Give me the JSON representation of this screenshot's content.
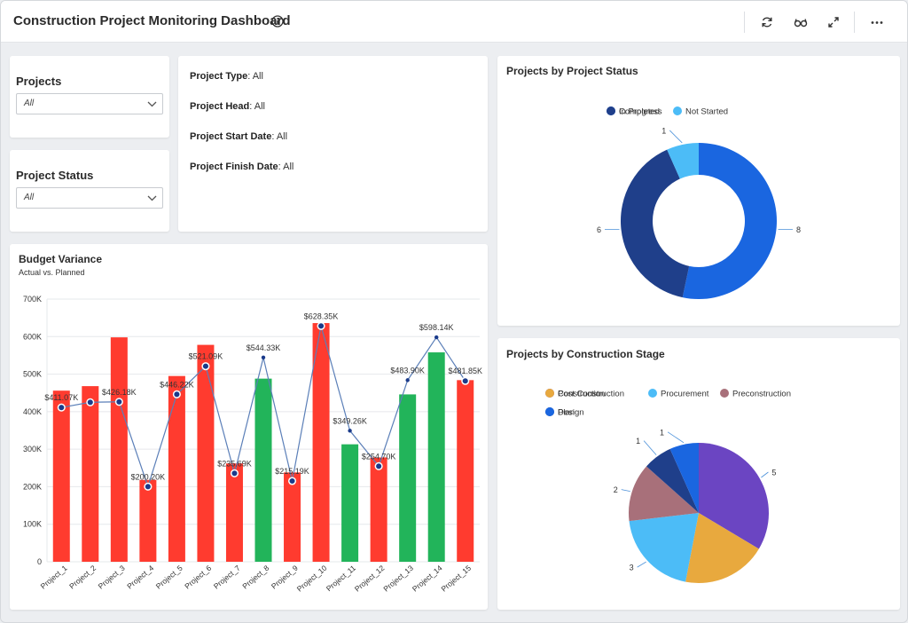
{
  "header": {
    "title": "Construction Project Monitoring Dashboard"
  },
  "filters": {
    "projects_label": "Projects",
    "projects_value": "All",
    "status_label": "Project Status",
    "status_value": "All"
  },
  "info": [
    {
      "key": "Project Type",
      "value": ": All"
    },
    {
      "key": "Project Head",
      "value": ": All"
    },
    {
      "key": "Project Start Date",
      "value": ": All"
    },
    {
      "key": "Project Finish Date",
      "value": ": All"
    }
  ],
  "colors": {
    "bar_red": "#ff3b2f",
    "bar_green": "#22b45a",
    "line": "#5b7fb8",
    "point": "#1a3a8a",
    "in_progress": "#1a66e0",
    "completed": "#1f3f8a",
    "not_started": "#4cbcf7",
    "post_construction": "#6b45c2",
    "construction": "#e8a93e",
    "procurement": "#4cbcf7",
    "preconstruction": "#a8707a",
    "design": "#1f3f8a",
    "plan": "#1a66e0"
  },
  "chart_data": [
    {
      "type": "bar",
      "title": "Budget Variance",
      "subtitle": "Actual vs. Planned",
      "categories": [
        "Project_1",
        "Project_2",
        "Project_3",
        "Project_4",
        "Project_5",
        "Project_6",
        "Project_7",
        "Project_8",
        "Project_9",
        "Project_10",
        "Project_11",
        "Project_12",
        "Project_13",
        "Project_14",
        "Project_15"
      ],
      "ylim": [
        0,
        700000
      ],
      "yticks": [
        {
          "v": 0,
          "label": "0"
        },
        {
          "v": 100000,
          "label": "100K"
        },
        {
          "v": 200000,
          "label": "200K"
        },
        {
          "v": 300000,
          "label": "300K"
        },
        {
          "v": 400000,
          "label": "400K"
        },
        {
          "v": 500000,
          "label": "500K"
        },
        {
          "v": 600000,
          "label": "600K"
        },
        {
          "v": 700000,
          "label": "700K"
        }
      ],
      "grid": true,
      "series": [
        {
          "kind": "bar",
          "values": [
            456000,
            468000,
            598000,
            218000,
            495000,
            578000,
            262000,
            488000,
            238000,
            636000,
            313000,
            278000,
            446000,
            558000,
            484000
          ],
          "status": [
            "over",
            "over",
            "over",
            "over",
            "over",
            "over",
            "over",
            "under",
            "over",
            "over",
            "under",
            "over",
            "under",
            "under",
            "over"
          ]
        },
        {
          "kind": "line",
          "values": [
            411070,
            425000,
            426180,
            200200,
            446220,
            521090,
            235690,
            544330,
            215190,
            628350,
            349260,
            254700,
            483900,
            598140,
            481850
          ],
          "labels": [
            "$411.07K",
            "",
            "$426.18K",
            "$200.20K",
            "$446.22K",
            "$521.09K",
            "$235.69K",
            "$544.33K",
            "$215.19K",
            "$628.35K",
            "$349.26K",
            "$254.70K",
            "$483.90K",
            "$598.14K",
            "$481.85K"
          ],
          "markers": [
            true,
            true,
            true,
            true,
            true,
            true,
            true,
            false,
            true,
            true,
            false,
            true,
            false,
            false,
            true
          ]
        }
      ]
    },
    {
      "type": "pie",
      "variant": "donut",
      "title": "Projects by Project Status",
      "legend_position": "top",
      "slices": [
        {
          "name": "In Progress",
          "value": 8,
          "color_key": "in_progress"
        },
        {
          "name": "Completed",
          "value": 6,
          "color_key": "completed"
        },
        {
          "name": "Not Started",
          "value": 1,
          "color_key": "not_started"
        }
      ]
    },
    {
      "type": "pie",
      "title": "Projects by Construction Stage",
      "legend_position": "top",
      "slices": [
        {
          "name": "Post Construction",
          "value": 5,
          "color_key": "post_construction"
        },
        {
          "name": "Construction",
          "value": 0,
          "color_key": "construction"
        },
        {
          "name": "Procurement",
          "value": 3,
          "color_key": "procurement"
        },
        {
          "name": "Preconstruction",
          "value": 2,
          "color_key": "preconstruction"
        },
        {
          "name": "Design",
          "value": 1,
          "color_key": "design"
        },
        {
          "name": "Plan",
          "value": 1,
          "color_key": "plan"
        }
      ],
      "construction_label_hidden": true
    }
  ]
}
